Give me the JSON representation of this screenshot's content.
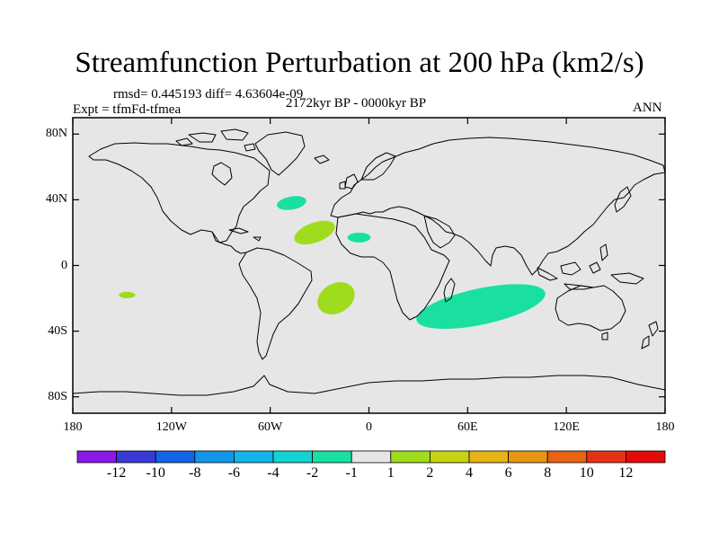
{
  "title": "Streamfunction Perturbation at 200 hPa (km2/s)",
  "stats": "rmsd= 0.445193 diff= 4.63604e-09",
  "experiment": "Expt = tfmFd-tfmea",
  "period": "2172kyr BP - 0000kyr BP",
  "season": "ANN",
  "map": {
    "projection": "cylindrical-equidistant",
    "lon_range": [
      -180,
      180
    ],
    "lat_range": [
      -90,
      90
    ],
    "background_color": "#e6e6e6",
    "lat_ticks": [
      {
        "value": 80,
        "label": "80N"
      },
      {
        "value": 40,
        "label": "40N"
      },
      {
        "value": 0,
        "label": "0"
      },
      {
        "value": -40,
        "label": "40S"
      },
      {
        "value": -80,
        "label": "80S"
      }
    ],
    "lon_ticks": [
      {
        "value": -180,
        "label": "180"
      },
      {
        "value": -120,
        "label": "120W"
      },
      {
        "value": -60,
        "label": "60W"
      },
      {
        "value": 0,
        "label": "0"
      },
      {
        "value": 60,
        "label": "60E"
      },
      {
        "value": 120,
        "label": "120E"
      },
      {
        "value": 180,
        "label": "180"
      }
    ],
    "anomalies": [
      {
        "name": "north-atlantic-negative",
        "lon": -47,
        "lat": 38,
        "rlon": 9,
        "rlat": 4,
        "rot": -10,
        "level": "-2 to -1",
        "color": "#19e0a0"
      },
      {
        "name": "west-atlantic-positive",
        "lon": -33,
        "lat": 20,
        "rlon": 13,
        "rlat": 6,
        "rot": -20,
        "level": "1 to 2",
        "color": "#a0dc1e"
      },
      {
        "name": "west-africa-negative",
        "lon": -6,
        "lat": 17,
        "rlon": 7,
        "rlat": 3,
        "rot": 0,
        "level": "-2 to -1",
        "color": "#19e0a0"
      },
      {
        "name": "south-atlantic-positive",
        "lon": -20,
        "lat": -20,
        "rlon": 12,
        "rlat": 9,
        "rot": -30,
        "level": "1 to 2",
        "color": "#a0dc1e"
      },
      {
        "name": "south-pacific-positive",
        "lon": -147,
        "lat": -18,
        "rlon": 5,
        "rlat": 2,
        "rot": 0,
        "level": "1 to 2",
        "color": "#a0dc1e"
      },
      {
        "name": "indian-ocean-negative",
        "lon": 68,
        "lat": -25,
        "rlon": 40,
        "rlat": 11,
        "rot": -12,
        "level": "-2 to -1",
        "color": "#19e0a0"
      }
    ]
  },
  "colorbar": {
    "levels": [
      "-12",
      "-10",
      "-8",
      "-6",
      "-4",
      "-2",
      "-1",
      "1",
      "2",
      "4",
      "6",
      "8",
      "10",
      "12"
    ],
    "colors": [
      "#8a18e6",
      "#3a3ad6",
      "#1464e6",
      "#1496e6",
      "#14b4e6",
      "#14d2d2",
      "#19e0a0",
      "#e6e6e6",
      "#a0dc1e",
      "#c8d214",
      "#e6b414",
      "#e69614",
      "#e66414",
      "#e63214",
      "#e60a0a"
    ]
  }
}
